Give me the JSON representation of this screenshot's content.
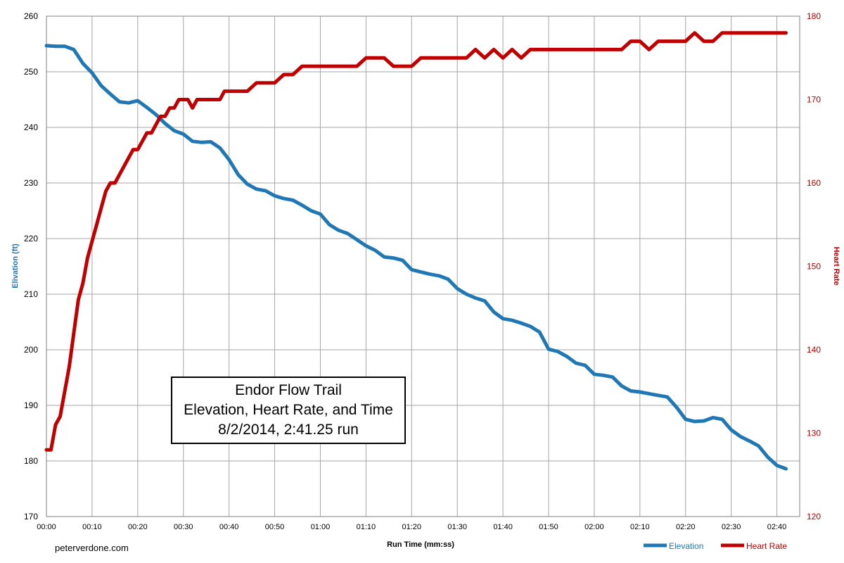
{
  "chart_data": {
    "type": "line",
    "title_lines": [
      "Endor Flow Trail",
      "Elevation, Heart Rate, and Time",
      "8/2/2014, 2:41.25 run"
    ],
    "xlabel": "Run Time (mm:ss)",
    "ylabel_left": "Elivation (ft)",
    "ylabel_right": "Heart Rate",
    "x_ticks": [
      "00:00",
      "00:10",
      "00:20",
      "00:30",
      "00:40",
      "00:50",
      "01:00",
      "01:10",
      "01:20",
      "01:30",
      "01:40",
      "01:50",
      "02:00",
      "02:10",
      "02:20",
      "02:30",
      "02:40"
    ],
    "xlim_minutes": [
      0,
      165
    ],
    "ylim_left": [
      170,
      260
    ],
    "yticks_left": [
      "170",
      "180",
      "190",
      "200",
      "210",
      "220",
      "230",
      "240",
      "250",
      "260"
    ],
    "ylim_right": [
      120,
      180
    ],
    "yticks_right": [
      "120",
      "130",
      "140",
      "150",
      "160",
      "170",
      "180"
    ],
    "grid": true,
    "legend_position": "bottom-right",
    "series": [
      {
        "name": "Elevation",
        "axis": "left",
        "color": "#1f77b4",
        "x": [
          0,
          2,
          4,
          6,
          8,
          10,
          12,
          14,
          16,
          18,
          20,
          22,
          24,
          26,
          28,
          30,
          32,
          34,
          36,
          38,
          40,
          42,
          44,
          46,
          48,
          50,
          52,
          54,
          56,
          58,
          60,
          62,
          64,
          66,
          68,
          70,
          72,
          74,
          76,
          78,
          80,
          82,
          84,
          86,
          88,
          90,
          92,
          94,
          96,
          98,
          100,
          102,
          104,
          106,
          108,
          110,
          112,
          114,
          116,
          118,
          120,
          122,
          124,
          126,
          128,
          130,
          132,
          134,
          136,
          138,
          140,
          142,
          144,
          146,
          148,
          150,
          152,
          154,
          156,
          158,
          160,
          162
        ],
        "values": [
          254.7,
          254.6,
          254.6,
          254.0,
          251.5,
          249.8,
          247.5,
          246.0,
          244.6,
          244.4,
          244.8,
          243.6,
          242.3,
          240.7,
          239.4,
          238.8,
          237.5,
          237.3,
          237.4,
          236.3,
          234.2,
          231.5,
          229.8,
          228.9,
          228.6,
          227.7,
          227.2,
          226.9,
          226.0,
          225.0,
          224.4,
          222.5,
          221.5,
          220.9,
          219.8,
          218.7,
          217.9,
          216.7,
          216.5,
          216.1,
          214.4,
          214.0,
          213.6,
          213.3,
          212.7,
          211.0,
          210.0,
          209.3,
          208.8,
          206.8,
          205.6,
          205.3,
          204.8,
          204.2,
          203.2,
          200.1,
          199.7,
          198.8,
          197.6,
          197.2,
          195.6,
          195.4,
          195.1,
          193.5,
          192.6,
          192.4,
          192.1,
          191.8,
          191.5,
          189.7,
          187.5,
          187.1,
          187.2,
          187.8,
          187.5,
          185.6,
          184.4,
          183.6,
          182.7,
          180.7,
          179.2,
          178.6
        ]
      },
      {
        "name": "Heart Rate",
        "axis": "right",
        "color": "#c00000",
        "x": [
          0,
          1,
          2,
          3,
          4,
          5,
          6,
          7,
          8,
          9,
          10,
          11,
          12,
          13,
          14,
          15,
          16,
          17,
          18,
          19,
          20,
          21,
          22,
          23,
          24,
          25,
          26,
          27,
          28,
          29,
          30,
          31,
          32,
          33,
          34,
          35,
          36,
          37,
          38,
          39,
          40,
          42,
          44,
          46,
          48,
          50,
          52,
          54,
          56,
          58,
          60,
          62,
          64,
          66,
          68,
          70,
          72,
          74,
          76,
          78,
          80,
          82,
          84,
          86,
          88,
          90,
          92,
          94,
          96,
          98,
          100,
          102,
          104,
          106,
          108,
          110,
          112,
          114,
          116,
          118,
          120,
          122,
          124,
          126,
          128,
          130,
          132,
          134,
          136,
          138,
          140,
          142,
          144,
          146,
          148,
          150,
          152,
          154,
          156,
          158,
          160,
          162
        ],
        "values": [
          128,
          128,
          131,
          132,
          135,
          138,
          142,
          146,
          148,
          151,
          153,
          155,
          157,
          159,
          160,
          160,
          161,
          162,
          163,
          164,
          164,
          165,
          166,
          166,
          167,
          168,
          168,
          169,
          169,
          170,
          170,
          170,
          169,
          170,
          170,
          170,
          170,
          170,
          170,
          171,
          171,
          171,
          171,
          172,
          172,
          172,
          173,
          173,
          174,
          174,
          174,
          174,
          174,
          174,
          174,
          175,
          175,
          175,
          174,
          174,
          174,
          175,
          175,
          175,
          175,
          175,
          175,
          176,
          175,
          176,
          175,
          176,
          175,
          176,
          176,
          176,
          176,
          176,
          176,
          176,
          176,
          176,
          176,
          176,
          177,
          177,
          176,
          177,
          177,
          177,
          177,
          178,
          177,
          177,
          178,
          178,
          178,
          178,
          178,
          178,
          178,
          178
        ]
      }
    ]
  },
  "legend": {
    "items": [
      {
        "label": "Elevation",
        "color": "#1f77b4"
      },
      {
        "label": "Heart Rate",
        "color": "#c00000"
      }
    ]
  },
  "watermark": "peterverdone.com"
}
